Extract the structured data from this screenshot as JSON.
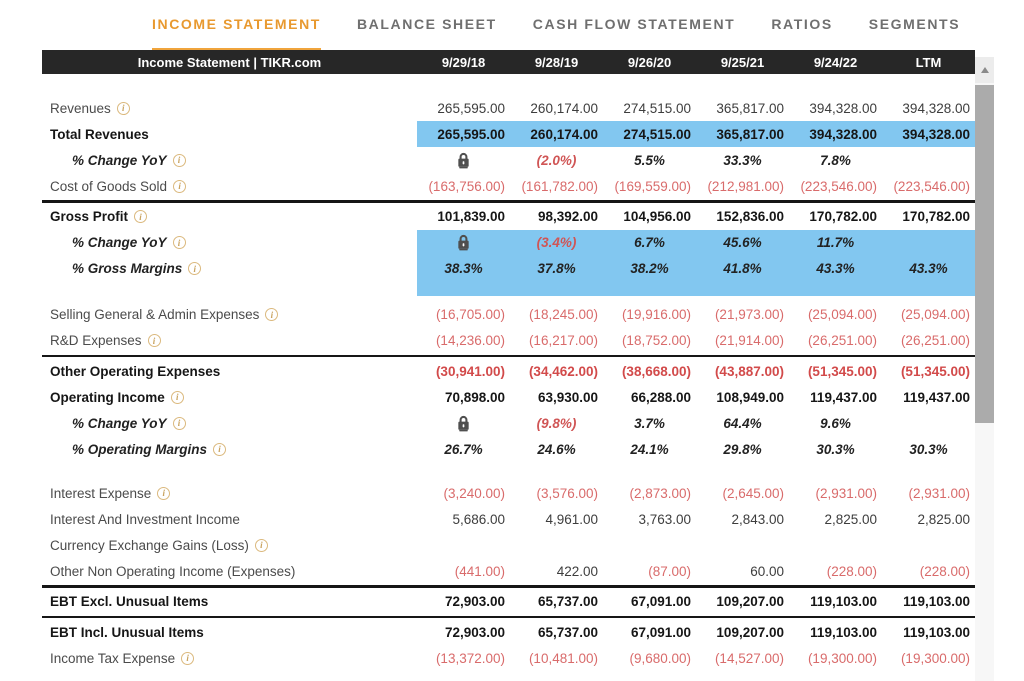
{
  "tabs": [
    {
      "label": "INCOME STATEMENT",
      "active": true
    },
    {
      "label": "BALANCE SHEET",
      "active": false
    },
    {
      "label": "CASH FLOW STATEMENT",
      "active": false
    },
    {
      "label": "RATIOS",
      "active": false
    },
    {
      "label": "SEGMENTS",
      "active": false
    }
  ],
  "table": {
    "title": "Income Statement | TIKR.com",
    "columns": [
      "9/29/18",
      "9/28/19",
      "9/26/20",
      "9/25/21",
      "9/24/22",
      "LTM"
    ],
    "rows": [
      {
        "label": "Revenues",
        "info": true,
        "kind": "plain",
        "values": [
          "265,595.00",
          "260,174.00",
          "274,515.00",
          "365,817.00",
          "394,328.00",
          "394,328.00"
        ]
      },
      {
        "label": "Total Revenues",
        "info": false,
        "kind": "bold",
        "highlight": true,
        "values": [
          "265,595.00",
          "260,174.00",
          "274,515.00",
          "365,817.00",
          "394,328.00",
          "394,328.00"
        ]
      },
      {
        "label": "% Change YoY",
        "info": true,
        "kind": "pct",
        "values": [
          "[lock]",
          "(2.0%)",
          "5.5%",
          "33.3%",
          "7.8%",
          ""
        ]
      },
      {
        "label": "Cost of Goods Sold",
        "info": true,
        "kind": "plain",
        "values": [
          "(163,756.00)",
          "(161,782.00)",
          "(169,559.00)",
          "(212,981.00)",
          "(223,546.00)",
          "(223,546.00)"
        ]
      },
      {
        "label": "Gross Profit",
        "info": true,
        "kind": "bold",
        "border_top": true,
        "values": [
          "101,839.00",
          "98,392.00",
          "104,956.00",
          "152,836.00",
          "170,782.00",
          "170,782.00"
        ]
      },
      {
        "label": "% Change YoY",
        "info": true,
        "kind": "pct",
        "highlight": true,
        "values": [
          "[lock]",
          "(3.4%)",
          "6.7%",
          "45.6%",
          "11.7%",
          ""
        ]
      },
      {
        "label": "% Gross Margins",
        "info": true,
        "kind": "pct",
        "highlight": true,
        "hl_pad": true,
        "values": [
          "38.3%",
          "37.8%",
          "38.2%",
          "41.8%",
          "43.3%",
          "43.3%"
        ]
      },
      {
        "label": "Selling General & Admin Expenses",
        "info": true,
        "kind": "plain",
        "gap_before": 6,
        "values": [
          "(16,705.00)",
          "(18,245.00)",
          "(19,916.00)",
          "(21,973.00)",
          "(25,094.00)",
          "(25,094.00)"
        ]
      },
      {
        "label": "R&D Expenses",
        "info": true,
        "kind": "plain",
        "values": [
          "(14,236.00)",
          "(16,217.00)",
          "(18,752.00)",
          "(21,914.00)",
          "(26,251.00)",
          "(26,251.00)"
        ]
      },
      {
        "label": "Other Operating Expenses",
        "info": false,
        "kind": "bold",
        "border_top": true,
        "values": [
          "(30,941.00)",
          "(34,462.00)",
          "(38,668.00)",
          "(43,887.00)",
          "(51,345.00)",
          "(51,345.00)"
        ]
      },
      {
        "label": "Operating Income",
        "info": true,
        "kind": "bold",
        "values": [
          "70,898.00",
          "63,930.00",
          "66,288.00",
          "108,949.00",
          "119,437.00",
          "119,437.00"
        ]
      },
      {
        "label": "% Change YoY",
        "info": true,
        "kind": "pct",
        "values": [
          "[lock]",
          "(9.8%)",
          "3.7%",
          "64.4%",
          "9.6%",
          ""
        ]
      },
      {
        "label": "% Operating Margins",
        "info": true,
        "kind": "pct",
        "values": [
          "26.7%",
          "24.6%",
          "24.1%",
          "29.8%",
          "30.3%",
          "30.3%"
        ]
      },
      {
        "label": "Interest Expense",
        "info": true,
        "kind": "plain",
        "gap_before": 18,
        "values": [
          "(3,240.00)",
          "(3,576.00)",
          "(2,873.00)",
          "(2,645.00)",
          "(2,931.00)",
          "(2,931.00)"
        ]
      },
      {
        "label": "Interest And Investment Income",
        "info": false,
        "kind": "plain",
        "values": [
          "5,686.00",
          "4,961.00",
          "3,763.00",
          "2,843.00",
          "2,825.00",
          "2,825.00"
        ]
      },
      {
        "label": "Currency Exchange Gains (Loss)",
        "info": true,
        "kind": "plain",
        "values": [
          "",
          "",
          "",
          "",
          "",
          ""
        ]
      },
      {
        "label": "Other Non Operating Income (Expenses)",
        "info": false,
        "kind": "plain",
        "values": [
          "(441.00)",
          "422.00",
          "(87.00)",
          "60.00",
          "(228.00)",
          "(228.00)"
        ]
      },
      {
        "label": "EBT Excl. Unusual Items",
        "info": false,
        "kind": "bold",
        "border_top": true,
        "border_bottom": true,
        "values": [
          "72,903.00",
          "65,737.00",
          "67,091.00",
          "109,207.00",
          "119,103.00",
          "119,103.00"
        ]
      },
      {
        "label": "EBT Incl. Unusual Items",
        "info": false,
        "kind": "bold",
        "values": [
          "72,903.00",
          "65,737.00",
          "67,091.00",
          "109,207.00",
          "119,103.00",
          "119,103.00"
        ]
      },
      {
        "label": "Income Tax Expense",
        "info": true,
        "kind": "plain",
        "values": [
          "(13,372.00)",
          "(10,481.00)",
          "(9,680.00)",
          "(14,527.00)",
          "(19,300.00)",
          "(19,300.00)"
        ]
      }
    ]
  },
  "icons": {
    "info": "i",
    "lock": "lock-icon",
    "scroll_up": "up-arrow"
  },
  "colors": {
    "accent_orange": "#E8992F",
    "tab_underline": "#F0A43C",
    "highlight_blue": "#82C7F0",
    "negative_red": "#D96B6B",
    "negative_red_bold": "#D24A4A",
    "header_bg": "#272727",
    "header_text": "#FFFFFF"
  }
}
